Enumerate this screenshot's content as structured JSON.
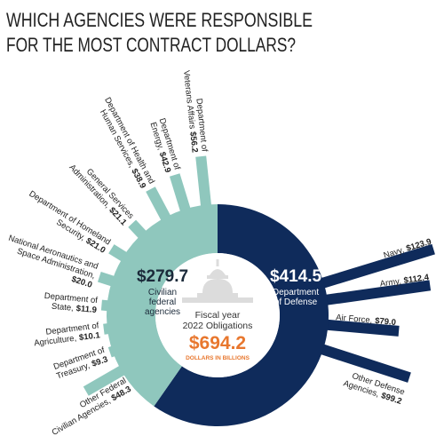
{
  "chart_data": {
    "type": "radial-bar",
    "title": [
      "WHICH AGENCIES WERE RESPONSIBLE",
      "FOR THE MOST CONTRACT DOLLARS?"
    ],
    "total": {
      "caption": [
        "Fiscal year",
        "2022 Obligations"
      ],
      "value": 694.2,
      "value_label": "$694.2",
      "unit": "DOLLARS IN BILLIONS",
      "color": "#e8772e"
    },
    "groups": [
      {
        "name": [
          "Department",
          "of Defense"
        ],
        "value": 414.5,
        "value_label": "$414.5",
        "color": "#0f2b5b",
        "categories": [
          [
            "Navy,"
          ],
          [
            "Army,"
          ],
          [
            "Air Force,"
          ],
          [
            "Other Defense",
            "Agencies,"
          ]
        ],
        "values": [
          123.9,
          112.4,
          79.0,
          99.2
        ],
        "value_labels": [
          "$123.9",
          "$112.4",
          "$79.0",
          "$99.2"
        ]
      },
      {
        "name": [
          "Civilian",
          "federal",
          "agencies"
        ],
        "value": 279.7,
        "value_label": "$279.7",
        "color": "#8fc7bd",
        "categories": [
          [
            "Other Federal",
            "Civilian Agencies,"
          ],
          [
            "Department of",
            "Treasury,"
          ],
          [
            "Department of",
            "Agriculture,"
          ],
          [
            "Department of",
            "State,"
          ],
          [
            "National Aeronautics and",
            "Space Administration,"
          ],
          [
            "Department of Homeland",
            "Security,"
          ],
          [
            "General Services",
            "Administration,"
          ],
          [
            "Department of Health and",
            "Human Services,"
          ],
          [
            "Department of",
            "Energy,"
          ],
          [
            "Department of",
            "Veterans Affairs"
          ]
        ],
        "values": [
          48.3,
          9.3,
          10.1,
          11.9,
          20.0,
          21.0,
          21.1,
          38.9,
          42.9,
          56.2
        ],
        "value_labels": [
          "$48.3",
          "$9.3",
          "$10.1",
          "$11.9",
          "$20.0",
          "$21.0",
          "$21.1",
          "$38.9",
          "$42.9",
          "$56.2"
        ]
      }
    ]
  }
}
